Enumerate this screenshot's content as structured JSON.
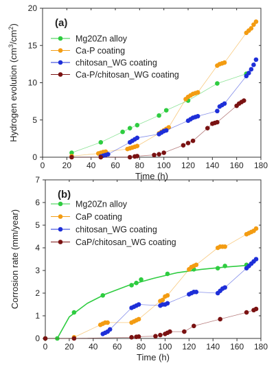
{
  "chart_data": [
    {
      "type": "scatter",
      "panel_label": "(a)",
      "xlabel": "Time (h)",
      "ylabel_main": "Hydrogen evolution (cm",
      "ylabel_sup1": "3",
      "ylabel_mid": "/cm",
      "ylabel_sup2": "2",
      "ylabel_end": ")",
      "xlim": [
        0,
        180
      ],
      "ylim": [
        0,
        20
      ],
      "xticks": [
        "0",
        "20",
        "40",
        "60",
        "80",
        "100",
        "120",
        "140",
        "160",
        "180"
      ],
      "yticks": [
        "0",
        "5",
        "10",
        "15",
        "20"
      ],
      "legend": "top-left",
      "series": [
        {
          "name": "Mg20Zn alloy",
          "color": "#2ecc40",
          "x": [
            24,
            48,
            66,
            72,
            78,
            96,
            102,
            120,
            144,
            168
          ],
          "y": [
            0.6,
            2.0,
            3.4,
            3.9,
            4.3,
            5.6,
            6.3,
            7.6,
            9.9,
            11.2
          ]
        },
        {
          "name": "Ca-P coating",
          "color": "#f39c12",
          "x": [
            24,
            46,
            48,
            50,
            52,
            70,
            72,
            74,
            76,
            78,
            96,
            98,
            100,
            102,
            104,
            118,
            120,
            122,
            124,
            126,
            128,
            144,
            146,
            148,
            150,
            168,
            170,
            172,
            174,
            176
          ],
          "y": [
            0.15,
            0.5,
            0.6,
            0.7,
            0.75,
            1.1,
            1.2,
            1.3,
            1.4,
            1.5,
            3.2,
            3.4,
            3.6,
            3.8,
            4.0,
            7.8,
            8.1,
            8.3,
            8.5,
            8.6,
            8.7,
            12.3,
            12.5,
            12.6,
            12.7,
            16.7,
            17.0,
            17.3,
            17.8,
            18.2
          ]
        },
        {
          "name": "chitosan_WG coating",
          "color": "#1e2fd8",
          "x": [
            48,
            50,
            52,
            54,
            72,
            74,
            76,
            78,
            96,
            98,
            100,
            102,
            120,
            122,
            124,
            126,
            128,
            144,
            146,
            148,
            150,
            168,
            170,
            172,
            174,
            176
          ],
          "y": [
            0.1,
            0.2,
            0.3,
            0.4,
            2.0,
            2.2,
            2.4,
            2.6,
            3.1,
            3.3,
            3.5,
            3.6,
            4.9,
            5.1,
            5.3,
            5.4,
            5.5,
            6.2,
            6.8,
            7.0,
            7.2,
            10.9,
            11.3,
            11.8,
            12.4,
            13.1
          ]
        },
        {
          "name": "Ca-P/chitosan_WG coating",
          "color": "#7a1212",
          "x": [
            24,
            48,
            72,
            76,
            78,
            92,
            96,
            100,
            116,
            120,
            124,
            136,
            140,
            142,
            144,
            160,
            162,
            164,
            166
          ],
          "y": [
            0.0,
            0.0,
            0.0,
            0.1,
            0.15,
            0.3,
            0.4,
            0.6,
            1.6,
            1.9,
            2.2,
            3.9,
            4.5,
            4.6,
            4.7,
            6.9,
            7.2,
            7.4,
            7.6
          ]
        }
      ]
    },
    {
      "type": "scatter",
      "panel_label": "(b)",
      "xlabel": "Time (h)",
      "ylabel": "Corrosion rate (mm/year)",
      "xlim": [
        0,
        180
      ],
      "ylim": [
        0,
        7
      ],
      "xticks": [
        "0",
        "20",
        "40",
        "60",
        "80",
        "100",
        "120",
        "140",
        "160",
        "180"
      ],
      "yticks": [
        "0",
        "1",
        "2",
        "3",
        "4",
        "5",
        "6",
        "7"
      ],
      "legend": "top-left",
      "series": [
        {
          "name": "Mg20Zn alloy",
          "color": "#2ecc40",
          "x": [
            0,
            10,
            24,
            48,
            72,
            76,
            80,
            102,
            124,
            144,
            150,
            168
          ],
          "y": [
            0,
            0,
            1.15,
            1.9,
            2.35,
            2.45,
            2.6,
            2.85,
            3.05,
            3.1,
            3.2,
            3.25
          ],
          "fit": [
            [
              10,
              0
            ],
            [
              20,
              0.95
            ],
            [
              35,
              1.55
            ],
            [
              50,
              1.95
            ],
            [
              70,
              2.35
            ],
            [
              90,
              2.65
            ],
            [
              110,
              2.9
            ],
            [
              130,
              3.05
            ],
            [
              150,
              3.15
            ],
            [
              168,
              3.22
            ]
          ]
        },
        {
          "name": "CaP coating",
          "color": "#f39c12",
          "x": [
            24,
            46,
            48,
            50,
            52,
            72,
            74,
            76,
            78,
            96,
            98,
            100,
            102,
            120,
            122,
            124,
            126,
            144,
            146,
            148,
            150,
            168,
            170,
            172,
            174,
            176
          ],
          "y": [
            0.05,
            0.6,
            0.65,
            0.7,
            0.7,
            0.7,
            0.75,
            0.8,
            0.85,
            1.65,
            1.7,
            1.85,
            1.9,
            3.05,
            3.15,
            3.2,
            3.25,
            4.0,
            4.05,
            4.05,
            4.05,
            4.6,
            4.65,
            4.7,
            4.75,
            4.85
          ]
        },
        {
          "name": "chitosan_WG coating",
          "color": "#1e2fd8",
          "x": [
            48,
            50,
            52,
            54,
            72,
            74,
            76,
            78,
            96,
            98,
            100,
            102,
            120,
            122,
            124,
            126,
            144,
            146,
            148,
            150,
            168,
            170,
            172,
            174,
            176
          ],
          "y": [
            0.2,
            0.25,
            0.3,
            0.4,
            1.35,
            1.4,
            1.45,
            1.5,
            1.45,
            1.5,
            1.5,
            1.55,
            1.95,
            2.0,
            2.05,
            2.05,
            2.0,
            2.1,
            2.2,
            2.25,
            3.1,
            3.2,
            3.3,
            3.4,
            3.5
          ]
        },
        {
          "name": "CaP/chitosan_WG coating",
          "color": "#7a1212",
          "x": [
            0,
            24,
            72,
            76,
            78,
            92,
            96,
            100,
            102,
            104,
            116,
            124,
            146,
            168,
            174,
            176
          ],
          "y": [
            0,
            0,
            0.05,
            0.07,
            0.08,
            0.1,
            0.15,
            0.2,
            0.25,
            0.3,
            0.3,
            0.55,
            0.85,
            1.15,
            1.25,
            1.3
          ]
        }
      ]
    }
  ]
}
